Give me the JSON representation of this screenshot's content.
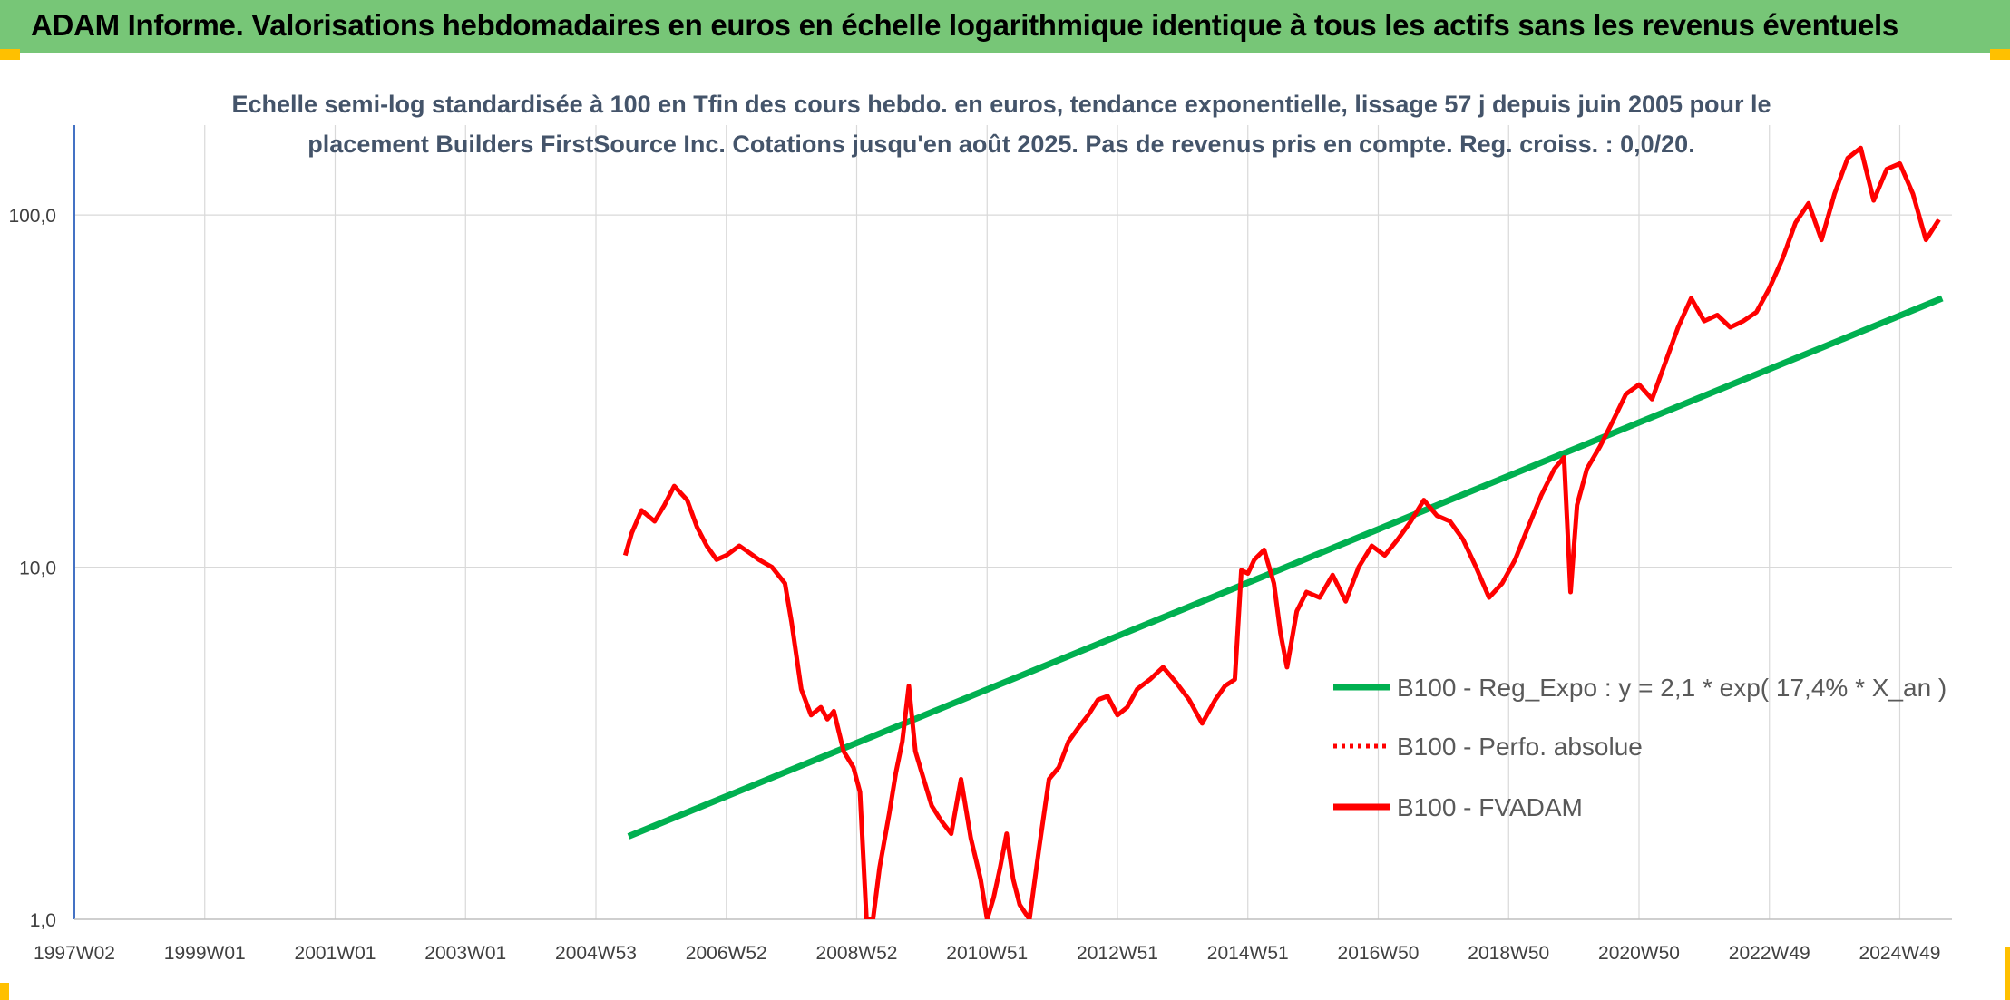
{
  "header": {
    "title": "ADAM Informe. Valorisations hebdomadaires en euros en échelle logarithmique identique à tous les actifs sans les revenus éventuels"
  },
  "colors": {
    "title_bar": "#77c677",
    "corner_accent": "#ffc000",
    "regression": "#00b050",
    "fvadam": "#ff0000",
    "perfo": "#ff0000",
    "gridline": "#d9d9d9",
    "y_axis_line": "#4472c4"
  },
  "chart_data": {
    "type": "line",
    "subtitle_lines": [
      "Echelle semi-log standardisée à 100 en Tfin des cours hebdo. en euros, tendance exponentielle, lissage 57 j depuis juin 2005 pour le",
      "placement Builders FirstSource Inc. Cotations jusqu'en août 2025. Pas de revenus pris en compte. Reg. croiss. : 0,0/20."
    ],
    "y_scale": "log",
    "ylim": [
      1,
      180
    ],
    "y_ticks": [
      1,
      10,
      100
    ],
    "y_tick_labels": [
      "1,0",
      "10,0",
      "100,0"
    ],
    "xlim": [
      1997.0,
      2025.8
    ],
    "x_ticks": [
      1997.0,
      1999.0,
      2001.0,
      2003.0,
      2005.0,
      2007.0,
      2009.0,
      2011.0,
      2013.0,
      2015.0,
      2017.0,
      2019.0,
      2021.0,
      2023.0,
      2025.0
    ],
    "x_tick_labels": [
      "1997W02",
      "1999W01",
      "2001W01",
      "2003W01",
      "2004W53",
      "2006W52",
      "2008W52",
      "2010W51",
      "2012W51",
      "2014W51",
      "2016W50",
      "2018W50",
      "2020W50",
      "2022W49",
      "2024W49"
    ],
    "legend_position": "right",
    "series": [
      {
        "name": "B100 - Reg_Expo : y = 2,1 * exp( 17,4% *  X_an )",
        "style": "solid-green",
        "x": [
          2005.5,
          2025.65
        ],
        "y": [
          1.72,
          58.0
        ]
      },
      {
        "name": "B100 - Perfo. absolue",
        "style": "dotted-red",
        "x": [],
        "y": []
      },
      {
        "name": "B100 - FVADAM",
        "style": "solid-red",
        "x": [
          2005.45,
          2005.55,
          2005.7,
          2005.9,
          2006.05,
          2006.2,
          2006.4,
          2006.55,
          2006.7,
          2006.85,
          2007.0,
          2007.2,
          2007.35,
          2007.5,
          2007.7,
          2007.9,
          2008.0,
          2008.15,
          2008.3,
          2008.45,
          2008.55,
          2008.65,
          2008.8,
          2008.95,
          2009.05,
          2009.15,
          2009.25,
          2009.35,
          2009.5,
          2009.6,
          2009.7,
          2009.8,
          2009.9,
          2010.0,
          2010.15,
          2010.3,
          2010.45,
          2010.6,
          2010.75,
          2010.9,
          2011.0,
          2011.1,
          2011.2,
          2011.3,
          2011.4,
          2011.5,
          2011.65,
          2011.8,
          2011.95,
          2012.1,
          2012.25,
          2012.4,
          2012.55,
          2012.7,
          2012.85,
          2013.0,
          2013.15,
          2013.3,
          2013.5,
          2013.7,
          2013.9,
          2014.1,
          2014.3,
          2014.5,
          2014.65,
          2014.8,
          2014.9,
          2015.0,
          2015.1,
          2015.25,
          2015.4,
          2015.5,
          2015.6,
          2015.75,
          2015.9,
          2016.1,
          2016.3,
          2016.5,
          2016.7,
          2016.9,
          2017.1,
          2017.3,
          2017.5,
          2017.7,
          2017.9,
          2018.1,
          2018.3,
          2018.5,
          2018.7,
          2018.9,
          2019.1,
          2019.3,
          2019.5,
          2019.7,
          2019.85,
          2019.95,
          2020.05,
          2020.2,
          2020.4,
          2020.6,
          2020.8,
          2021.0,
          2021.2,
          2021.4,
          2021.6,
          2021.8,
          2022.0,
          2022.2,
          2022.4,
          2022.6,
          2022.8,
          2023.0,
          2023.2,
          2023.4,
          2023.6,
          2023.8,
          2024.0,
          2024.2,
          2024.4,
          2024.6,
          2024.8,
          2025.0,
          2025.2,
          2025.4,
          2025.6
        ],
        "y": [
          10.8,
          12.5,
          14.5,
          13.5,
          15.0,
          17.0,
          15.5,
          13.0,
          11.5,
          10.5,
          10.8,
          11.5,
          11.0,
          10.5,
          10.0,
          9.0,
          7.0,
          4.5,
          3.8,
          4.0,
          3.7,
          3.9,
          3.0,
          2.7,
          2.3,
          0.95,
          1.0,
          1.4,
          2.0,
          2.6,
          3.2,
          4.6,
          3.0,
          2.6,
          2.1,
          1.9,
          1.75,
          2.5,
          1.7,
          1.3,
          1.0,
          1.15,
          1.4,
          1.75,
          1.3,
          1.1,
          1.0,
          1.6,
          2.5,
          2.7,
          3.2,
          3.5,
          3.8,
          4.2,
          4.3,
          3.8,
          4.0,
          4.5,
          4.8,
          5.2,
          4.7,
          4.2,
          3.6,
          4.2,
          4.6,
          4.8,
          9.8,
          9.6,
          10.5,
          11.2,
          9.0,
          6.5,
          5.2,
          7.5,
          8.5,
          8.2,
          9.5,
          8.0,
          10.0,
          11.5,
          10.8,
          12.0,
          13.5,
          15.5,
          14.0,
          13.5,
          12.0,
          10.0,
          8.2,
          9.0,
          10.5,
          13.0,
          16.0,
          19.0,
          20.5,
          8.5,
          15.0,
          19.0,
          22.0,
          26.0,
          31.0,
          33.0,
          30.0,
          38.0,
          48.0,
          58.0,
          50.0,
          52.0,
          48.0,
          50.0,
          53.0,
          62.0,
          75.0,
          95.0,
          108.0,
          85.0,
          115.0,
          145.0,
          155.0,
          110.0,
          135.0,
          140.0,
          115.0,
          85.0,
          97.0
        ]
      }
    ]
  }
}
